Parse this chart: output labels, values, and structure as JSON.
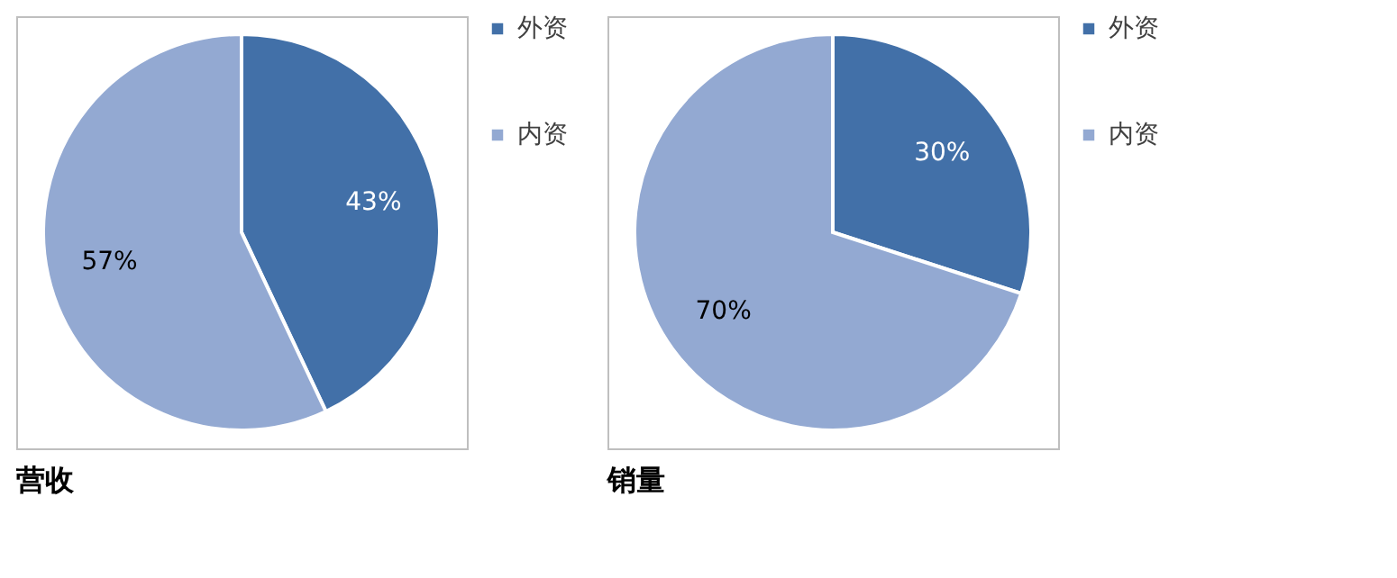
{
  "chart_data": [
    {
      "type": "pie",
      "title": "营收",
      "categories": [
        "外资",
        "内资"
      ],
      "values": [
        43,
        57
      ],
      "colors": [
        "#4270a8",
        "#93a9d2"
      ],
      "data_labels": true,
      "value_labels": [
        "43%",
        "57%"
      ],
      "legend": "right"
    },
    {
      "type": "pie",
      "title": "销量",
      "categories": [
        "外资",
        "内资"
      ],
      "values": [
        30,
        70
      ],
      "colors": [
        "#4270a8",
        "#93a9d2"
      ],
      "data_labels": true,
      "value_labels": [
        "30%",
        "70%"
      ],
      "legend": "right"
    }
  ]
}
